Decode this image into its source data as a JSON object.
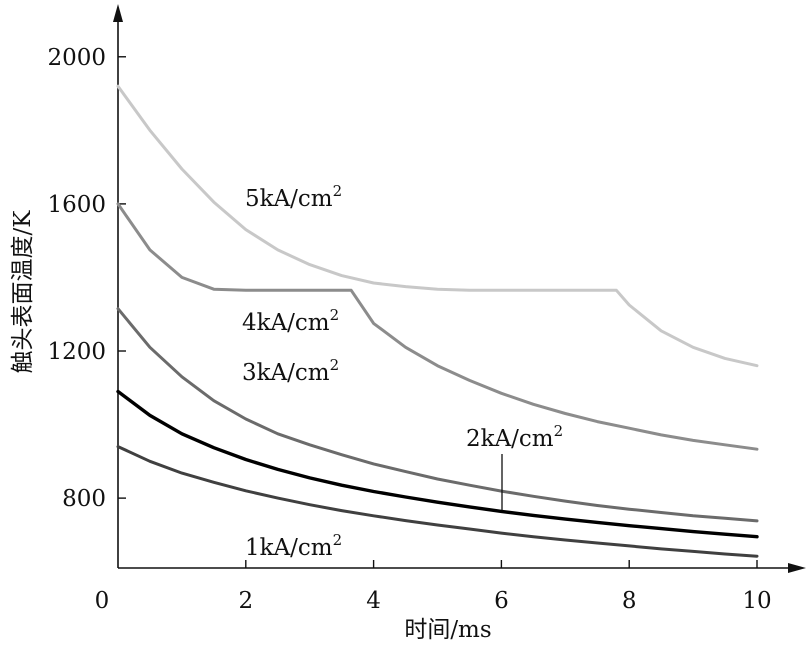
{
  "chart_data": {
    "type": "line",
    "xlabel": "时间/ms",
    "ylabel": "触头表面温度/K",
    "xlim": [
      0,
      10
    ],
    "ylim": [
      610,
      2100
    ],
    "x_ticks": [
      0,
      2,
      4,
      6,
      8,
      10
    ],
    "y_ticks": [
      800,
      1200,
      1600,
      2000
    ],
    "grid": false,
    "series": [
      {
        "name": "5kA/cm²",
        "color": "#c8c8c8",
        "x": [
          0,
          0.5,
          1,
          1.5,
          2,
          2.5,
          3,
          3.5,
          4,
          4.5,
          5,
          5.5,
          6,
          6.5,
          7,
          7.5,
          7.8,
          8.0,
          8.5,
          9,
          9.5,
          10
        ],
        "y": [
          1920,
          1800,
          1695,
          1605,
          1530,
          1475,
          1435,
          1405,
          1385,
          1375,
          1368,
          1365,
          1365,
          1365,
          1365,
          1365,
          1365,
          1325,
          1255,
          1210,
          1180,
          1160
        ]
      },
      {
        "name": "4kA/cm²",
        "color": "#8c8c8c",
        "x": [
          0,
          0.5,
          1,
          1.5,
          2,
          2.5,
          3,
          3.5,
          3.65,
          4,
          4.5,
          5,
          5.5,
          6,
          6.5,
          7,
          7.5,
          8,
          8.5,
          9,
          9.5,
          10
        ],
        "y": [
          1600,
          1475,
          1400,
          1368,
          1365,
          1365,
          1365,
          1365,
          1365,
          1275,
          1210,
          1160,
          1120,
          1085,
          1055,
          1030,
          1008,
          990,
          972,
          957,
          945,
          933
        ]
      },
      {
        "name": "3kA/cm²",
        "color": "#6b6b6b",
        "x": [
          0,
          0.5,
          1,
          1.5,
          2,
          2.5,
          3,
          3.5,
          4,
          4.5,
          5,
          5.5,
          6,
          6.5,
          7,
          7.5,
          8,
          8.5,
          9,
          9.5,
          10
        ],
        "y": [
          1315,
          1210,
          1130,
          1065,
          1015,
          975,
          945,
          918,
          893,
          872,
          852,
          835,
          819,
          805,
          792,
          780,
          770,
          761,
          752,
          745,
          738
        ]
      },
      {
        "name": "2kA/cm²",
        "color": "#000000",
        "x": [
          0,
          0.5,
          1,
          1.5,
          2,
          2.5,
          3,
          3.5,
          4,
          4.5,
          5,
          5.5,
          6,
          6.5,
          7,
          7.5,
          8,
          8.5,
          9,
          9.5,
          10
        ],
        "y": [
          1090,
          1025,
          975,
          937,
          905,
          878,
          855,
          835,
          818,
          803,
          789,
          776,
          764,
          753,
          743,
          734,
          725,
          717,
          709,
          702,
          695
        ]
      },
      {
        "name": "1kA/cm²",
        "color": "#404040",
        "x": [
          0,
          0.5,
          1,
          1.5,
          2,
          2.5,
          3,
          3.5,
          4,
          4.5,
          5,
          5.5,
          6,
          6.5,
          7,
          7.5,
          8,
          8.5,
          9,
          9.5,
          10
        ],
        "y": [
          940,
          900,
          868,
          843,
          820,
          800,
          782,
          766,
          752,
          739,
          727,
          716,
          705,
          695,
          686,
          678,
          670,
          662,
          655,
          648,
          642
        ]
      }
    ]
  },
  "labels": {
    "s5": "5kA/cm",
    "s4": "4kA/cm",
    "s3": "3kA/cm",
    "s2": "2kA/cm",
    "s1": "1kA/cm",
    "sup": "2"
  }
}
